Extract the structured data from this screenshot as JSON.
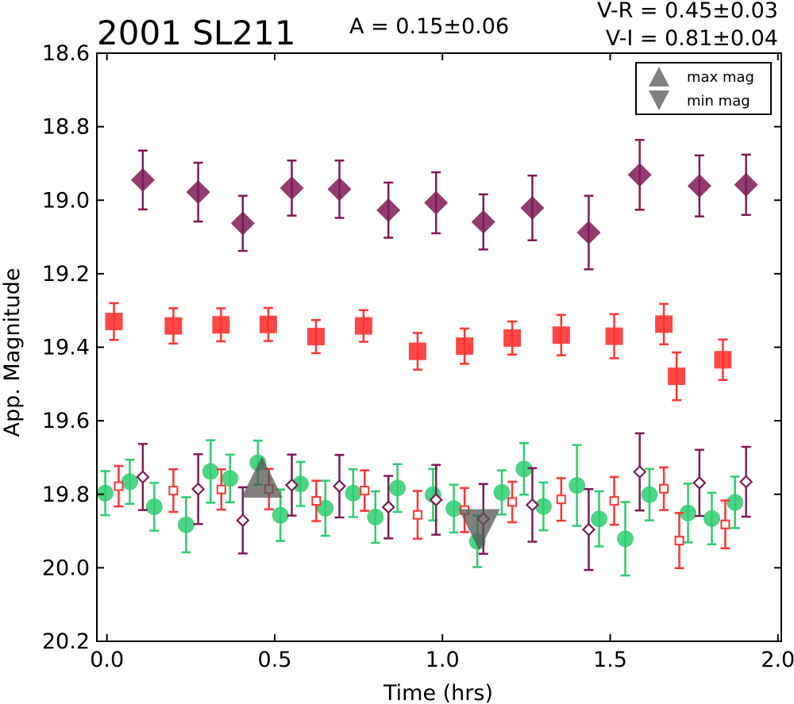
{
  "chart_data": {
    "type": "scatter",
    "title": "2001 SL211",
    "amplitude_label": "A  = 0.15±0.06",
    "color_labels": [
      "V-R = 0.45±0.03",
      "V-I  = 0.81±0.04"
    ],
    "xlabel": "Time (hrs)",
    "ylabel": "App. Magnitude",
    "xlim": [
      -0.03,
      2.01
    ],
    "ylim": [
      20.2,
      18.6
    ],
    "y_inverted": true,
    "xticks": [
      "0.0",
      "0.5",
      "1.0",
      "1.5",
      "2.0"
    ],
    "xtick_values": [
      0.0,
      0.5,
      1.0,
      1.5,
      2.0
    ],
    "yticks": [
      "18.6",
      "18.8",
      "19.0",
      "19.2",
      "19.4",
      "19.6",
      "19.8",
      "20.0",
      "20.2"
    ],
    "ytick_values": [
      18.6,
      18.8,
      19.0,
      19.2,
      19.4,
      19.6,
      19.8,
      20.0,
      20.2
    ],
    "grid": false,
    "legend_position": "top-right",
    "legend": [
      {
        "label": "max mag",
        "marker": "triangle-up"
      },
      {
        "label": "min mag",
        "marker": "triangle-down"
      }
    ],
    "colors": {
      "v_band": "#2ecc71",
      "r_band": "#ff3333",
      "i_band": "#7f1a56",
      "extrema": "#555555"
    },
    "series": [
      {
        "marker": "diamond-filled",
        "color": "#7f1a56",
        "x": [
          0.107,
          0.272,
          0.405,
          0.551,
          0.693,
          0.839,
          0.981,
          1.122,
          1.268,
          1.436,
          1.588,
          1.766,
          1.905
        ],
        "y": [
          18.945,
          18.978,
          19.063,
          18.967,
          18.97,
          19.027,
          19.007,
          19.059,
          19.021,
          19.088,
          18.931,
          18.961,
          18.958
        ],
        "err": [
          0.08,
          0.08,
          0.075,
          0.075,
          0.078,
          0.075,
          0.083,
          0.075,
          0.088,
          0.1,
          0.095,
          0.083,
          0.082
        ]
      },
      {
        "marker": "square-filled",
        "color": "#ff3333",
        "x": [
          0.021,
          0.198,
          0.34,
          0.481,
          0.623,
          0.765,
          0.926,
          1.066,
          1.208,
          1.354,
          1.512,
          1.66,
          1.698,
          1.836
        ],
        "y": [
          19.33,
          19.342,
          19.339,
          19.338,
          19.371,
          19.342,
          19.411,
          19.397,
          19.375,
          19.367,
          19.37,
          19.337,
          19.479,
          19.434
        ],
        "err": [
          0.05,
          0.048,
          0.045,
          0.045,
          0.045,
          0.043,
          0.05,
          0.048,
          0.045,
          0.055,
          0.06,
          0.055,
          0.065,
          0.055
        ]
      },
      {
        "marker": "circle-filled",
        "color": "#2ecc71",
        "x": [
          -0.005,
          0.068,
          0.141,
          0.236,
          0.309,
          0.367,
          0.45,
          0.517,
          0.577,
          0.651,
          0.734,
          0.8,
          0.866,
          0.972,
          1.034,
          1.104,
          1.177,
          1.243,
          1.301,
          1.401,
          1.467,
          1.545,
          1.617,
          1.732,
          1.803,
          1.872
        ],
        "y": [
          19.797,
          19.766,
          19.834,
          19.883,
          19.738,
          19.757,
          19.714,
          19.857,
          19.772,
          19.838,
          19.797,
          19.862,
          19.783,
          19.801,
          19.839,
          19.928,
          19.795,
          19.731,
          19.833,
          19.776,
          19.867,
          19.921,
          19.801,
          19.851,
          19.866,
          19.822
        ],
        "err": [
          0.06,
          0.06,
          0.065,
          0.075,
          0.085,
          0.065,
          0.06,
          0.07,
          0.06,
          0.075,
          0.065,
          0.07,
          0.065,
          0.07,
          0.065,
          0.07,
          0.06,
          0.07,
          0.065,
          0.11,
          0.075,
          0.1,
          0.07,
          0.08,
          0.07,
          0.07
        ]
      },
      {
        "marker": "square-open",
        "color": "#ff3333",
        "x": [
          0.035,
          0.198,
          0.341,
          0.483,
          0.624,
          0.768,
          0.926,
          1.066,
          1.208,
          1.354,
          1.512,
          1.66,
          1.706,
          1.843
        ],
        "y": [
          19.778,
          19.79,
          19.787,
          19.786,
          19.818,
          19.79,
          19.856,
          19.843,
          19.821,
          19.814,
          19.818,
          19.785,
          19.926,
          19.882
        ],
        "err": [
          0.055,
          0.058,
          0.055,
          0.055,
          0.055,
          0.055,
          0.065,
          0.06,
          0.055,
          0.058,
          0.065,
          0.058,
          0.075,
          0.065
        ]
      },
      {
        "marker": "diamond-open",
        "color": "#7f1a56",
        "x": [
          0.107,
          0.272,
          0.405,
          0.551,
          0.693,
          0.839,
          0.981,
          1.122,
          1.268,
          1.436,
          1.588,
          1.766,
          1.905
        ],
        "y": [
          19.753,
          19.786,
          19.871,
          19.775,
          19.778,
          19.835,
          19.815,
          19.867,
          19.829,
          19.896,
          19.739,
          19.769,
          19.766
        ],
        "err": [
          0.09,
          0.095,
          0.09,
          0.083,
          0.085,
          0.085,
          0.095,
          0.095,
          0.1,
          0.11,
          0.105,
          0.09,
          0.095
        ]
      },
      {
        "marker": "triangle-up-large",
        "color": "#555555",
        "x": [
          0.462
        ],
        "y": [
          19.775
        ],
        "err": [
          0
        ]
      },
      {
        "marker": "triangle-down-large",
        "color": "#555555",
        "x": [
          1.11
        ],
        "y": [
          19.875
        ],
        "err": [
          0
        ]
      }
    ]
  }
}
